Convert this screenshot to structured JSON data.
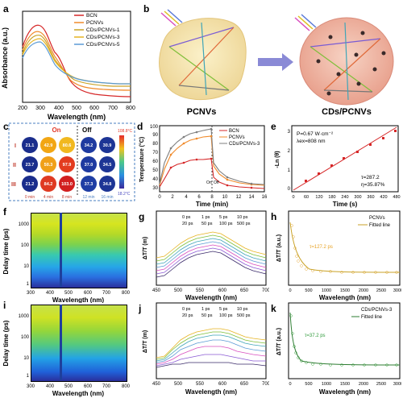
{
  "labels": {
    "a": "a",
    "b": "b",
    "c": "c",
    "d": "d",
    "e": "e",
    "f": "f",
    "g": "g",
    "h": "h",
    "i": "i",
    "j": "j",
    "k": "k"
  },
  "panel_a": {
    "ylabel": "Absorbance (a.u.)",
    "xlabel": "Wavelength (nm)",
    "xticks": [
      "200",
      "300",
      "400",
      "500",
      "600",
      "700",
      "800"
    ],
    "legend": [
      {
        "name": "BCN",
        "color": "#d62728"
      },
      {
        "name": "PCNVs",
        "color": "#f08a2b"
      },
      {
        "name": "CDs/PCNVs-1",
        "color": "#c9a227"
      },
      {
        "name": "CDs/PCNVs-3",
        "color": "#e6b422"
      },
      {
        "name": "CDs/PCNVs-5",
        "color": "#5b9bd5"
      }
    ]
  },
  "panel_b": {
    "left_label": "PCNVs",
    "right_label": "CDs/PCNVs"
  },
  "panel_c": {
    "on_label": "On",
    "off_label": "Off",
    "rows": [
      "I",
      "II",
      "III"
    ],
    "values": [
      [
        "21.1",
        "42.9",
        "80.6",
        "34.2",
        "30.9"
      ],
      [
        "23.7",
        "50.3",
        "97.9",
        "37.0",
        "34.5"
      ],
      [
        "21.2",
        "84.2",
        "103.0",
        "37.3",
        "34.8"
      ]
    ],
    "times": [
      "0 min",
      "4 min",
      "8 min",
      "12 min",
      "16 min"
    ],
    "scale_max": "108.8°C",
    "scale_min": "18.2°C"
  },
  "panel_d": {
    "ylabel": "Temperature (°C)",
    "xlabel": "Time (min)",
    "xticks": [
      "0",
      "2",
      "4",
      "6",
      "8",
      "10",
      "12",
      "14",
      "16"
    ],
    "yticks": [
      "30",
      "40",
      "50",
      "60",
      "70",
      "80",
      "90",
      "100"
    ],
    "legend": [
      {
        "name": "BCN",
        "color": "#d62728"
      },
      {
        "name": "PCNVs",
        "color": "#f08a2b"
      },
      {
        "name": "CDs/PCNVs-3",
        "color": "#7f7f7f"
      }
    ],
    "on": "On",
    "off": "Off"
  },
  "panel_e": {
    "ylabel": "-Ln (θ)",
    "xlabel": "Time (s)",
    "xticks": [
      "0",
      "60",
      "120",
      "180",
      "240",
      "300",
      "360",
      "420",
      "480"
    ],
    "yticks": [
      "0",
      "1",
      "2",
      "3"
    ],
    "text1": "P=0.67 W·cm⁻²",
    "text2": "λex=808 nm",
    "text3": "τ=287.2",
    "text4": "η=35.87%"
  },
  "panel_f": {
    "ylabel": "Delay time (ps)",
    "xlabel": "Wavelength (nm)",
    "xticks": [
      "300",
      "400",
      "500",
      "600",
      "700",
      "800"
    ],
    "yticks": [
      "1000",
      "100",
      "10",
      "1"
    ]
  },
  "panel_g": {
    "ylabel": "ΔT/T (m)",
    "xlabel": "Wavelength (nm)",
    "xticks": [
      "450",
      "500",
      "550",
      "600",
      "650",
      "700"
    ],
    "legend": [
      "0 ps",
      "1 ps",
      "5 ps",
      "10 ps",
      "20 ps",
      "50 ps",
      "100 ps",
      "500 ps"
    ]
  },
  "panel_h": {
    "ylabel": "ΔT/T (a.u.)",
    "xlabel": "Wavelength (nm)",
    "xticks": [
      "0",
      "500",
      "1000",
      "1500",
      "2000",
      "2500",
      "3000"
    ],
    "legend": [
      "PCNVs",
      "Fitted line"
    ],
    "tau": "τ=127.2 ps"
  },
  "panel_i": {
    "ylabel": "Delay time (ps)",
    "xlabel": "Wavelength (nm)",
    "xticks": [
      "300",
      "400",
      "500",
      "600",
      "700",
      "800"
    ],
    "yticks": [
      "1000",
      "100",
      "10",
      "1"
    ]
  },
  "panel_j": {
    "ylabel": "ΔT/T (m)",
    "xlabel": "Wavelength (nm)",
    "xticks": [
      "450",
      "500",
      "550",
      "600",
      "650",
      "700"
    ],
    "legend": [
      "0 ps",
      "1 ps",
      "5 ps",
      "10 ps",
      "20 ps",
      "50 ps",
      "100 ps",
      "500 ps"
    ]
  },
  "panel_k": {
    "ylabel": "ΔT/T (a.u.)",
    "xlabel": "Wavelength (nm)",
    "xticks": [
      "0",
      "500",
      "1000",
      "1500",
      "2000",
      "2500",
      "3000"
    ],
    "legend": [
      "CDs/PCNVs-3",
      "Fitted line"
    ],
    "tau": "τ=37.2 ps"
  }
}
